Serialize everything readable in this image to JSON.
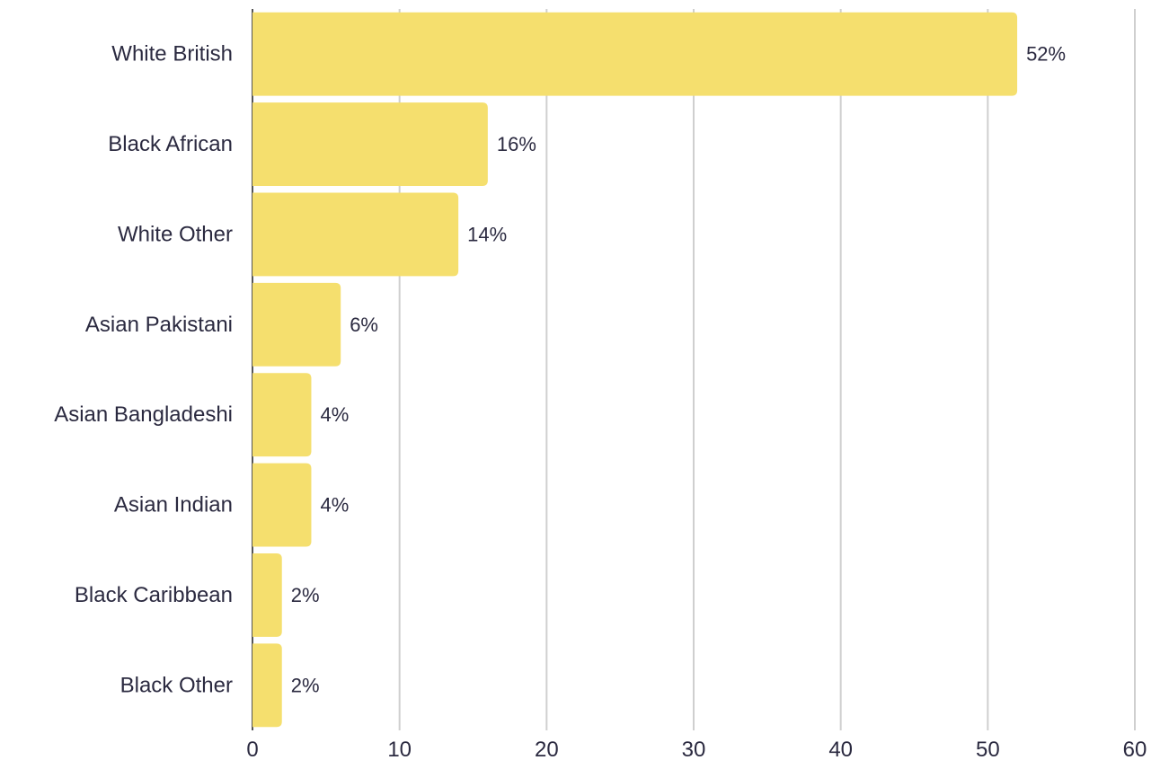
{
  "chart_data": {
    "type": "bar",
    "orientation": "horizontal",
    "categories": [
      "White British",
      "Black African",
      "White Other",
      "Asian Pakistani",
      "Asian Bangladeshi",
      "Asian Indian",
      "Black Caribbean",
      "Black Other"
    ],
    "values": [
      52,
      16,
      14,
      6,
      4,
      4,
      2,
      2
    ],
    "value_labels": [
      "52%",
      "16%",
      "14%",
      "6%",
      "4%",
      "4%",
      "2%",
      "2%"
    ],
    "xlim": [
      0,
      60
    ],
    "x_ticks": [
      0,
      10,
      20,
      30,
      40,
      50,
      60
    ],
    "grid": true,
    "title": "",
    "xlabel": "",
    "ylabel": "",
    "bar_color": "#f5df6e",
    "grid_color": "#cfcfcf",
    "text_color": "#2b2a40"
  }
}
